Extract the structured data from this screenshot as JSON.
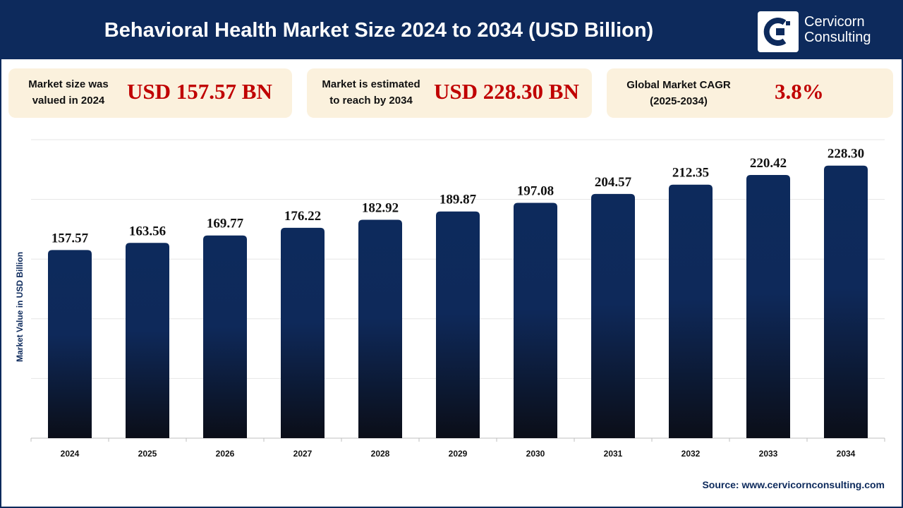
{
  "header": {
    "title": "Behavioral Health Market Size 2024 to 2034 (USD Billion)",
    "logo_line1": "Cervicorn",
    "logo_line2": "Consulting"
  },
  "stats": [
    {
      "label_line1": "Market size was",
      "label_line2": "valued in 2024",
      "value": "USD 157.57 BN"
    },
    {
      "label_line1": "Market is estimated",
      "label_line2": "to reach by 2034",
      "value": "USD 228.30 BN"
    },
    {
      "label_line1": "Global Market CAGR",
      "label_line2": "(2025-2034)",
      "value": "3.8%"
    }
  ],
  "colors": {
    "brand": "#0d2a5c",
    "bar_top": "#0d2a5c",
    "bar_bottom": "#0b0f1c",
    "highlight": "#c00000",
    "card": "#fbf1dd"
  },
  "chart_data": {
    "type": "bar",
    "title": "",
    "xlabel": "",
    "ylabel": "Market Value in USD Billion",
    "categories": [
      "2024",
      "2025",
      "2026",
      "2027",
      "2028",
      "2029",
      "2030",
      "2031",
      "2032",
      "2033",
      "2034"
    ],
    "values": [
      157.57,
      163.56,
      169.77,
      176.22,
      182.92,
      189.87,
      197.08,
      204.57,
      212.35,
      220.42,
      228.3
    ],
    "data_labels": [
      "157.57",
      "163.56",
      "169.77",
      "176.22",
      "182.92",
      "189.87",
      "197.08",
      "204.57",
      "212.35",
      "220.42",
      "228.30"
    ],
    "ylim": [
      0,
      250
    ],
    "grid": true,
    "legend": "none"
  },
  "source": "Source: www.cervicornconsulting.com"
}
